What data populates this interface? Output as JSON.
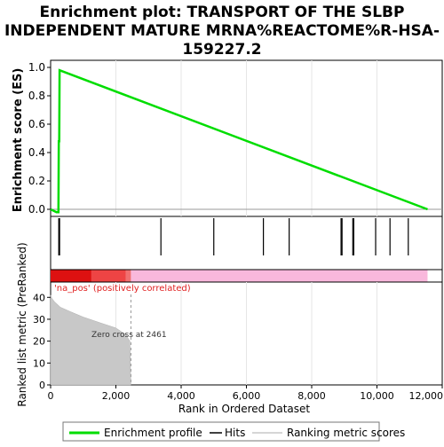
{
  "chart_data": {
    "type": "line",
    "title_lines": [
      "Enrichment plot: TRANSPORT OF THE SLBP",
      "INDEPENDENT MATURE MRNA%REACTOME%R-HSA-",
      "159227.2"
    ],
    "es_panel": {
      "ylabel": "Enrichment score (ES)",
      "ylim": [
        -0.05,
        1.05
      ],
      "yticks": [
        "0.0",
        "0.2",
        "0.4",
        "0.6",
        "0.8",
        "1.0"
      ],
      "ytick_values": [
        0.0,
        0.2,
        0.4,
        0.6,
        0.8,
        1.0
      ],
      "series_name": "Enrichment profile",
      "color": "#00dd00",
      "points": [
        [
          0,
          0.0
        ],
        [
          180,
          -0.02
        ],
        [
          240,
          -0.02
        ],
        [
          250,
          0.48
        ],
        [
          265,
          0.48
        ],
        [
          275,
          0.98
        ],
        [
          11550,
          0.0
        ]
      ]
    },
    "hits": {
      "series_name": "Hits",
      "positions": [
        250,
        275,
        3380,
        5000,
        6520,
        7310,
        8900,
        8930,
        9260,
        9290,
        9960,
        10400,
        10960
      ]
    },
    "heatmap": {
      "label": "'na_pos' (positively correlated)",
      "label_color": "#e02020",
      "segments": [
        {
          "from": 0,
          "to": 1250,
          "color": "#dd1111"
        },
        {
          "from": 1250,
          "to": 2300,
          "color": "#ee4444"
        },
        {
          "from": 2300,
          "to": 2461,
          "color": "#f07070"
        },
        {
          "from": 2461,
          "to": 11550,
          "color": "#f9b8dc"
        }
      ]
    },
    "metric_panel": {
      "ylabel": "Ranked list metric (PreRanked)",
      "ylim": [
        0,
        47
      ],
      "yticks": [
        "0",
        "10",
        "20",
        "30",
        "40"
      ],
      "ytick_values": [
        0,
        10,
        20,
        30,
        40
      ],
      "series_name": "Ranking metric scores",
      "fill_color": "#c8c8c8",
      "curve": [
        [
          0,
          41
        ],
        [
          40,
          39.5
        ],
        [
          120,
          38
        ],
        [
          300,
          35.5
        ],
        [
          600,
          33.5
        ],
        [
          1000,
          31
        ],
        [
          1500,
          28.5
        ],
        [
          2000,
          26
        ],
        [
          2300,
          23
        ],
        [
          2430,
          20
        ],
        [
          2461,
          0
        ]
      ],
      "zero_cross_text": "Zero cross at 2461",
      "zero_cross": 2461
    },
    "xaxis": {
      "xlabel": "Rank in Ordered Dataset",
      "xlim": [
        0,
        12000
      ],
      "xticks": [
        "0",
        "2,000",
        "4,000",
        "6,000",
        "8,000",
        "10,000",
        "12,000"
      ],
      "xtick_values": [
        0,
        2000,
        4000,
        6000,
        8000,
        10000,
        12000
      ]
    },
    "legend": {
      "placement": "bottom",
      "items": [
        {
          "label": "Enrichment profile",
          "color": "#00dd00"
        },
        {
          "label": "Hits",
          "color": "#000000"
        },
        {
          "label": "Ranking metric scores",
          "color": "#c8c8c8"
        }
      ]
    }
  }
}
